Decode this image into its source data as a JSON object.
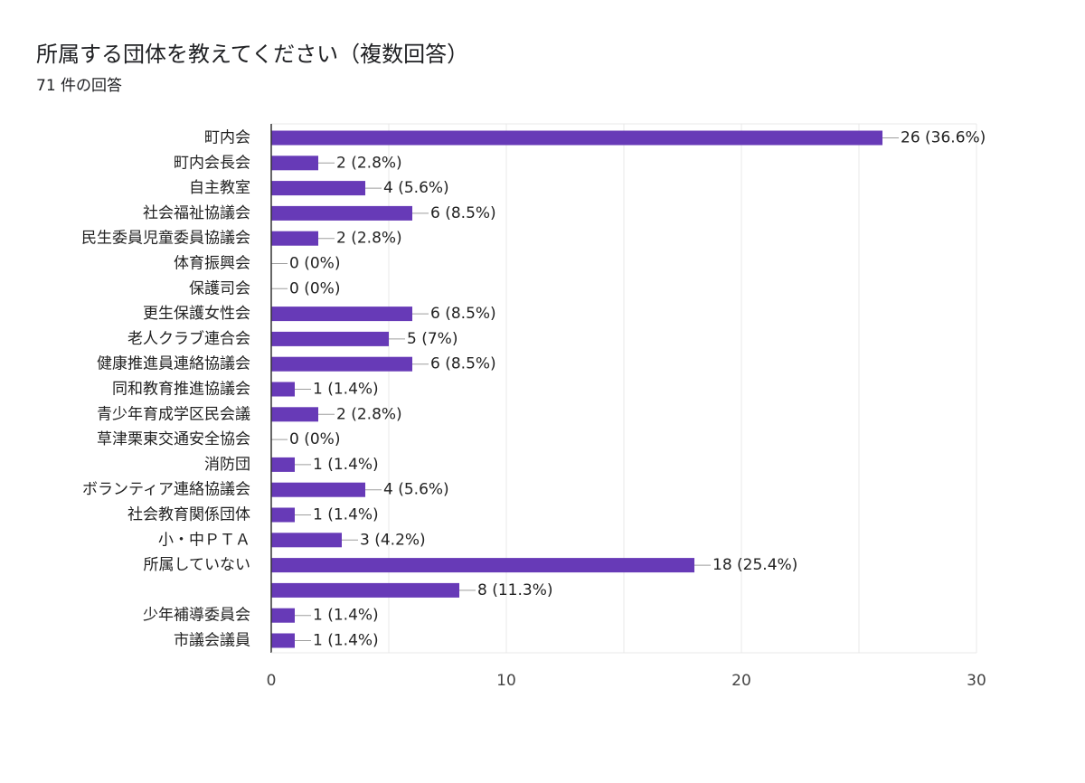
{
  "title": "所属する団体を教えてください（複数回答）",
  "subtitle": "71 件の回答",
  "chart_data": {
    "type": "bar",
    "orientation": "horizontal",
    "title": "所属する団体を教えてください（複数回答）",
    "subtitle": "71 件の回答",
    "categories": [
      "町内会",
      "町内会長会",
      "自主教室",
      "社会福祉協議会",
      "民生委員児童委員協議会",
      "体育振興会",
      "保護司会",
      "更生保護女性会",
      "老人クラブ連合会",
      "健康推進員連絡協議会",
      "同和教育推進協議会",
      "青少年育成学区民会議",
      "草津栗東交通安全協会",
      "消防団",
      "ボランティア連絡協議会",
      "社会教育関係団体",
      "小・中ＰＴＡ",
      "所属していない",
      "",
      "少年補導委員会",
      "市議会議員"
    ],
    "values": [
      26,
      2,
      4,
      6,
      2,
      0,
      0,
      6,
      5,
      6,
      1,
      2,
      0,
      1,
      4,
      1,
      3,
      18,
      8,
      1,
      1
    ],
    "value_labels": [
      "26 (36.6%)",
      "2 (2.8%)",
      "4 (5.6%)",
      "6 (8.5%)",
      "2 (2.8%)",
      "0 (0%)",
      "0 (0%)",
      "6 (8.5%)",
      "5 (7%)",
      "6 (8.5%)",
      "1 (1.4%)",
      "2 (2.8%)",
      "0 (0%)",
      "1 (1.4%)",
      "4 (5.6%)",
      "1 (1.4%)",
      "3 (4.2%)",
      "18 (25.4%)",
      "8 (11.3%)",
      "1 (1.4%)",
      "1 (1.4%)"
    ],
    "xlim": [
      0,
      30
    ],
    "xticks": [
      0,
      10,
      20,
      30
    ],
    "grid": true,
    "bar_color": "#673ab7",
    "connector_color": "#9e9e9e",
    "grid_color": "#e8e8e8",
    "axis_color": "#333333"
  }
}
